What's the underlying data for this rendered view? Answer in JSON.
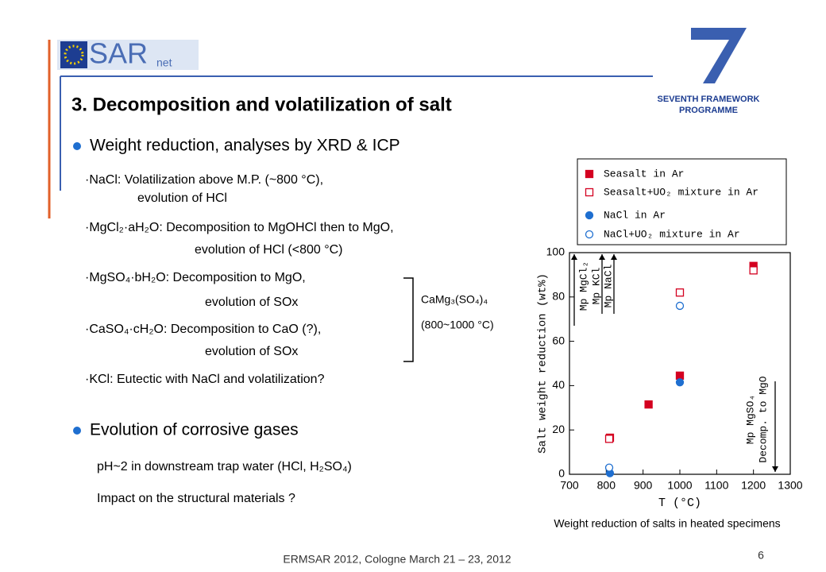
{
  "header": {
    "logo_main": "SAR",
    "logo_sub": "net",
    "fp7_line1": "SEVENTH FRAMEWORK",
    "fp7_line2": "PROGRAMME"
  },
  "section_title": "3. Decomposition and volatilization of salt",
  "bullet1": {
    "heading": "Weight reduction, analyses by XRD & ICP",
    "items": [
      [
        "·NaCl: Volatilization above M.P. (~800 °C),",
        "evolution of HCl"
      ],
      [
        "·MgCl₂·aH₂O: Decomposition to MgOHCl then to MgO,",
        "evolution of HCl (<800 °C)"
      ],
      [
        "·MgSO₄·bH₂O: Decomposition to MgO,",
        "evolution of SOx"
      ],
      [
        "·CaSO₄·cH₂O: Decomposition to CaO (?),",
        "evolution of SOx"
      ],
      [
        "·KCl: Eutectic with NaCl and volatilization?"
      ]
    ]
  },
  "bracket_note": [
    "CaMg₃(SO₄)₄",
    "(800~1000 °C)"
  ],
  "bullet2": {
    "heading": "Evolution of corrosive gases",
    "items": [
      "pH~2 in downstream trap water (HCl, H₂SO₄)",
      "Impact on the structural materials ?"
    ]
  },
  "footer": {
    "text": "ERMSAR 2012, Cologne March 21 – 23, 2012",
    "page": 6
  },
  "chart_data": {
    "type": "scatter",
    "xlabel": "T (°C)",
    "ylabel": "Salt weight reduction (wt%)",
    "caption": "Weight reduction of salts in heated specimens",
    "xlim": [
      700,
      1300
    ],
    "ylim": [
      0,
      100
    ],
    "xticks": [
      700,
      800,
      900,
      1000,
      1100,
      1200,
      1300
    ],
    "yticks": [
      0,
      20,
      40,
      60,
      80,
      100
    ],
    "legend": "top",
    "series": [
      {
        "name": "Seasalt in Ar",
        "color": "#d40020",
        "marker": "square",
        "filled": true,
        "x": [
          810,
          915,
          1000,
          1200
        ],
        "values": [
          16.5,
          31.5,
          44.5,
          94
        ]
      },
      {
        "name": "Seasalt+UO₂ mixture in Ar",
        "color": "#d40020",
        "marker": "square",
        "filled": false,
        "x": [
          808,
          1000,
          1200
        ],
        "values": [
          16,
          82,
          92
        ]
      },
      {
        "name": "NaCl in Ar",
        "color": "#1f6fd0",
        "marker": "circle",
        "filled": true,
        "x": [
          810,
          1000
        ],
        "values": [
          0.5,
          41.5
        ]
      },
      {
        "name": "NaCl+UO₂ mixture in Ar",
        "color": "#1f6fd0",
        "marker": "circle",
        "filled": false,
        "x": [
          808,
          1000
        ],
        "values": [
          3,
          76
        ]
      }
    ],
    "annotations": [
      "Mp MgCl₂",
      "Mp KCl",
      "Mp NaCl",
      "Mp MgSO₄",
      "Decomp. to MgO"
    ]
  }
}
